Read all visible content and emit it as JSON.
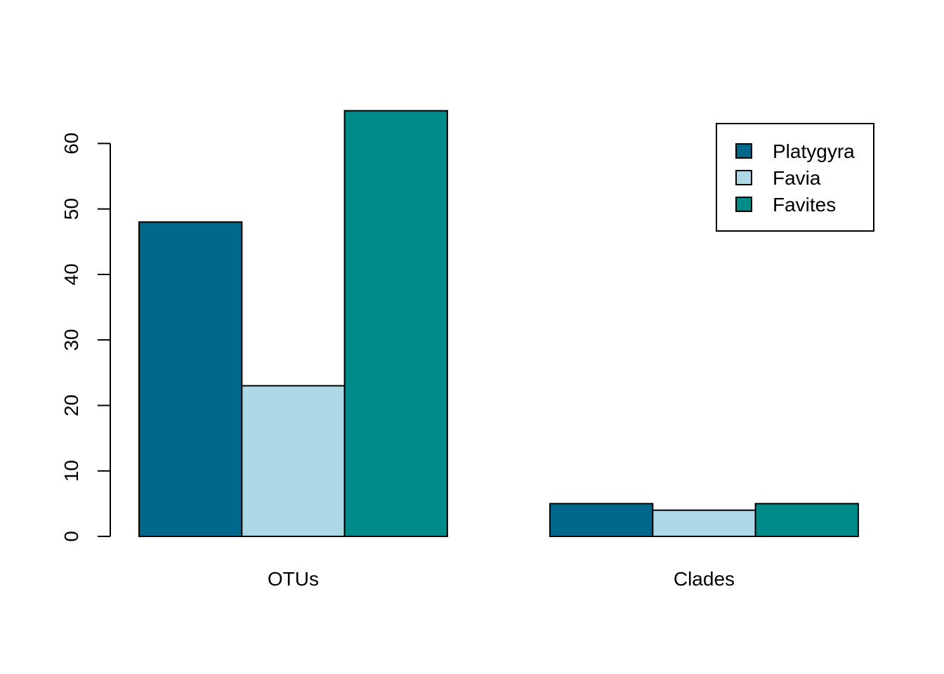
{
  "chart_data": {
    "type": "bar",
    "title": "",
    "xlabel": "",
    "ylabel": "",
    "categories": [
      "OTUs",
      "Clades"
    ],
    "series": [
      {
        "name": "Platygyra",
        "values": [
          48,
          5
        ],
        "color": "#00688B"
      },
      {
        "name": "Favia",
        "values": [
          23,
          4
        ],
        "color": "#ADD8E6"
      },
      {
        "name": "Favites",
        "values": [
          65,
          5
        ],
        "color": "#008B8B"
      }
    ],
    "ylim": [
      0,
      65
    ],
    "yticks": [
      "0",
      "10",
      "20",
      "30",
      "40",
      "50",
      "60"
    ],
    "grid": false,
    "legend": "top-right",
    "bar_border_color": "#000000"
  }
}
